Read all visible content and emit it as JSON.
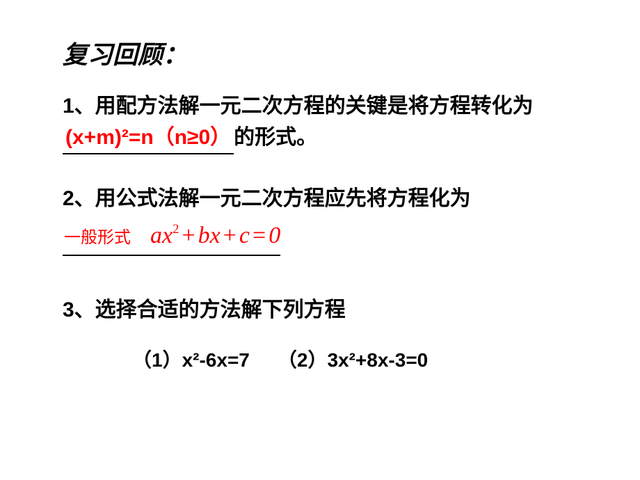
{
  "title": {
    "text": "复习回顾：",
    "fontsize": 36,
    "color": "#000000"
  },
  "q1": {
    "prefix": "1、用配方法解一元二次方程的关键是将方程转化为",
    "blank": "(x+m)²=n（n≥0）",
    "suffix": "的形式。",
    "fontsize": 30,
    "blank_color": "#ff0000"
  },
  "q2": {
    "line1": "2、用公式法解一元二次方程应先将方程化为",
    "general_label": "一般形式",
    "general_fontsize": 24,
    "formula_a": "ax",
    "formula_exp": "2",
    "formula_b": "bx",
    "formula_c": "c",
    "formula_zero": "0",
    "fontsize": 30,
    "formula_fontsize": 34,
    "formula_color": "#ff0000"
  },
  "q3": {
    "text": "3、选择合适的方法解下列方程",
    "fontsize": 30,
    "eq1_label": "（1）",
    "eq1": "x²-6x=7",
    "eq2_label": "（2）",
    "eq2": "3x²+8x-3=0",
    "eq_fontsize": 28
  },
  "background_color": "#ffffff"
}
